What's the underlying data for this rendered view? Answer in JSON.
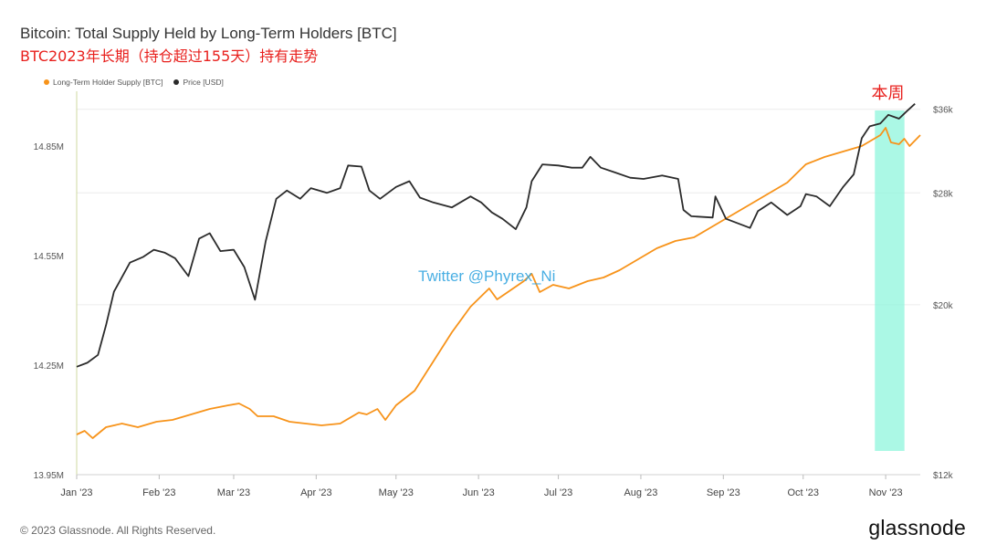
{
  "header": {
    "title": "Bitcoin: Total Supply Held by Long-Term Holders [BTC]",
    "subtitle": "BTC2023年长期（持仓超过155天）持有走势"
  },
  "legend": [
    {
      "label": "Long-Term Holder Supply [BTC]",
      "color": "#f7931a"
    },
    {
      "label": "Price [USD]",
      "color": "#2b2b2b"
    }
  ],
  "footer": {
    "copyright": "© 2023 Glassnode. All Rights Reserved.",
    "logo": "glassnode"
  },
  "watermark": "Twitter @Phyrex_Ni",
  "highlight": {
    "label": "本周",
    "color": "#8ff5dc"
  },
  "chart_data": {
    "type": "line",
    "title": "Bitcoin: Total Supply Held by Long-Term Holders [BTC]",
    "x_ticks": [
      "Jan '23",
      "Feb '23",
      "Mar '23",
      "Apr '23",
      "May '23",
      "Jun '23",
      "Jul '23",
      "Aug '23",
      "Sep '23",
      "Oct '23",
      "Nov '23"
    ],
    "y_left": {
      "ticks": [
        "13.95M",
        "14.25M",
        "14.55M",
        "14.85M"
      ],
      "range": [
        13.95,
        15.0
      ],
      "unit": "M BTC"
    },
    "y_right": {
      "ticks": [
        "$12k",
        "$20k",
        "$28k",
        "$36k"
      ],
      "range": [
        12,
        38
      ],
      "unit": "k USD",
      "scale": "log"
    },
    "grid": true,
    "legend_position": "top-left",
    "highlight_range": [
      "2023-10-30",
      "2023-11-06"
    ],
    "series": [
      {
        "name": "Long-Term Holder Supply [BTC]",
        "color": "#f7931a",
        "axis": "left",
        "points": [
          [
            "2023-01-01",
            14.06
          ],
          [
            "2023-01-04",
            14.07
          ],
          [
            "2023-01-07",
            14.05
          ],
          [
            "2023-01-12",
            14.08
          ],
          [
            "2023-01-18",
            14.09
          ],
          [
            "2023-01-24",
            14.08
          ],
          [
            "2023-01-31",
            14.095
          ],
          [
            "2023-02-06",
            14.1
          ],
          [
            "2023-02-13",
            14.115
          ],
          [
            "2023-02-20",
            14.13
          ],
          [
            "2023-02-27",
            14.14
          ],
          [
            "2023-03-03",
            14.145
          ],
          [
            "2023-03-07",
            14.13
          ],
          [
            "2023-03-10",
            14.11
          ],
          [
            "2023-03-16",
            14.11
          ],
          [
            "2023-03-22",
            14.095
          ],
          [
            "2023-03-28",
            14.09
          ],
          [
            "2023-04-03",
            14.085
          ],
          [
            "2023-04-10",
            14.09
          ],
          [
            "2023-04-17",
            14.12
          ],
          [
            "2023-04-20",
            14.115
          ],
          [
            "2023-04-24",
            14.13
          ],
          [
            "2023-04-27",
            14.1
          ],
          [
            "2023-05-01",
            14.14
          ],
          [
            "2023-05-08",
            14.18
          ],
          [
            "2023-05-15",
            14.26
          ],
          [
            "2023-05-22",
            14.34
          ],
          [
            "2023-05-29",
            14.41
          ],
          [
            "2023-06-05",
            14.46
          ],
          [
            "2023-06-08",
            14.43
          ],
          [
            "2023-06-12",
            14.45
          ],
          [
            "2023-06-18",
            14.48
          ],
          [
            "2023-06-21",
            14.5
          ],
          [
            "2023-06-24",
            14.45
          ],
          [
            "2023-06-29",
            14.47
          ],
          [
            "2023-07-05",
            14.46
          ],
          [
            "2023-07-12",
            14.48
          ],
          [
            "2023-07-18",
            14.49
          ],
          [
            "2023-07-24",
            14.51
          ],
          [
            "2023-07-31",
            14.54
          ],
          [
            "2023-08-07",
            14.57
          ],
          [
            "2023-08-14",
            14.59
          ],
          [
            "2023-08-21",
            14.6
          ],
          [
            "2023-08-28",
            14.63
          ],
          [
            "2023-09-04",
            14.66
          ],
          [
            "2023-09-11",
            14.69
          ],
          [
            "2023-09-18",
            14.72
          ],
          [
            "2023-09-25",
            14.75
          ],
          [
            "2023-10-02",
            14.8
          ],
          [
            "2023-10-09",
            14.82
          ],
          [
            "2023-10-16",
            14.835
          ],
          [
            "2023-10-23",
            14.85
          ],
          [
            "2023-10-30",
            14.88
          ],
          [
            "2023-11-01",
            14.9
          ],
          [
            "2023-11-03",
            14.86
          ],
          [
            "2023-11-06",
            14.855
          ],
          [
            "2023-11-08",
            14.87
          ],
          [
            "2023-11-10",
            14.85
          ],
          [
            "2023-11-14",
            14.88
          ]
        ]
      },
      {
        "name": "Price [USD]",
        "color": "#2b2b2b",
        "axis": "right",
        "points": [
          [
            "2023-01-01",
            16.6
          ],
          [
            "2023-01-05",
            16.8
          ],
          [
            "2023-01-09",
            17.2
          ],
          [
            "2023-01-12",
            18.8
          ],
          [
            "2023-01-15",
            20.8
          ],
          [
            "2023-01-21",
            22.7
          ],
          [
            "2023-01-26",
            23.1
          ],
          [
            "2023-01-30",
            23.6
          ],
          [
            "2023-02-03",
            23.4
          ],
          [
            "2023-02-07",
            23.0
          ],
          [
            "2023-02-12",
            21.8
          ],
          [
            "2023-02-16",
            24.4
          ],
          [
            "2023-02-20",
            24.8
          ],
          [
            "2023-02-24",
            23.5
          ],
          [
            "2023-03-01",
            23.6
          ],
          [
            "2023-03-05",
            22.4
          ],
          [
            "2023-03-09",
            20.3
          ],
          [
            "2023-03-13",
            24.2
          ],
          [
            "2023-03-17",
            27.5
          ],
          [
            "2023-03-21",
            28.2
          ],
          [
            "2023-03-26",
            27.5
          ],
          [
            "2023-03-30",
            28.4
          ],
          [
            "2023-04-05",
            28.0
          ],
          [
            "2023-04-10",
            28.4
          ],
          [
            "2023-04-13",
            30.4
          ],
          [
            "2023-04-18",
            30.3
          ],
          [
            "2023-04-21",
            28.2
          ],
          [
            "2023-04-25",
            27.5
          ],
          [
            "2023-05-01",
            28.5
          ],
          [
            "2023-05-06",
            29.0
          ],
          [
            "2023-05-10",
            27.6
          ],
          [
            "2023-05-15",
            27.2
          ],
          [
            "2023-05-22",
            26.8
          ],
          [
            "2023-05-29",
            27.7
          ],
          [
            "2023-06-02",
            27.2
          ],
          [
            "2023-06-06",
            26.4
          ],
          [
            "2023-06-10",
            25.9
          ],
          [
            "2023-06-15",
            25.1
          ],
          [
            "2023-06-19",
            26.8
          ],
          [
            "2023-06-21",
            29.0
          ],
          [
            "2023-06-25",
            30.5
          ],
          [
            "2023-07-01",
            30.4
          ],
          [
            "2023-07-06",
            30.2
          ],
          [
            "2023-07-10",
            30.2
          ],
          [
            "2023-07-13",
            31.2
          ],
          [
            "2023-07-17",
            30.2
          ],
          [
            "2023-07-22",
            29.8
          ],
          [
            "2023-07-28",
            29.3
          ],
          [
            "2023-08-02",
            29.2
          ],
          [
            "2023-08-09",
            29.5
          ],
          [
            "2023-08-15",
            29.2
          ],
          [
            "2023-08-17",
            26.6
          ],
          [
            "2023-08-20",
            26.1
          ],
          [
            "2023-08-28",
            26.0
          ],
          [
            "2023-08-29",
            27.7
          ],
          [
            "2023-09-02",
            25.9
          ],
          [
            "2023-09-11",
            25.2
          ],
          [
            "2023-09-14",
            26.5
          ],
          [
            "2023-09-19",
            27.2
          ],
          [
            "2023-09-25",
            26.2
          ],
          [
            "2023-09-30",
            26.9
          ],
          [
            "2023-10-02",
            27.9
          ],
          [
            "2023-10-06",
            27.7
          ],
          [
            "2023-10-11",
            26.9
          ],
          [
            "2023-10-16",
            28.5
          ],
          [
            "2023-10-20",
            29.6
          ],
          [
            "2023-10-23",
            33.0
          ],
          [
            "2023-10-26",
            34.2
          ],
          [
            "2023-10-30",
            34.5
          ],
          [
            "2023-11-02",
            35.4
          ],
          [
            "2023-11-06",
            35.0
          ],
          [
            "2023-11-09",
            35.8
          ],
          [
            "2023-11-12",
            36.6
          ]
        ]
      }
    ]
  }
}
